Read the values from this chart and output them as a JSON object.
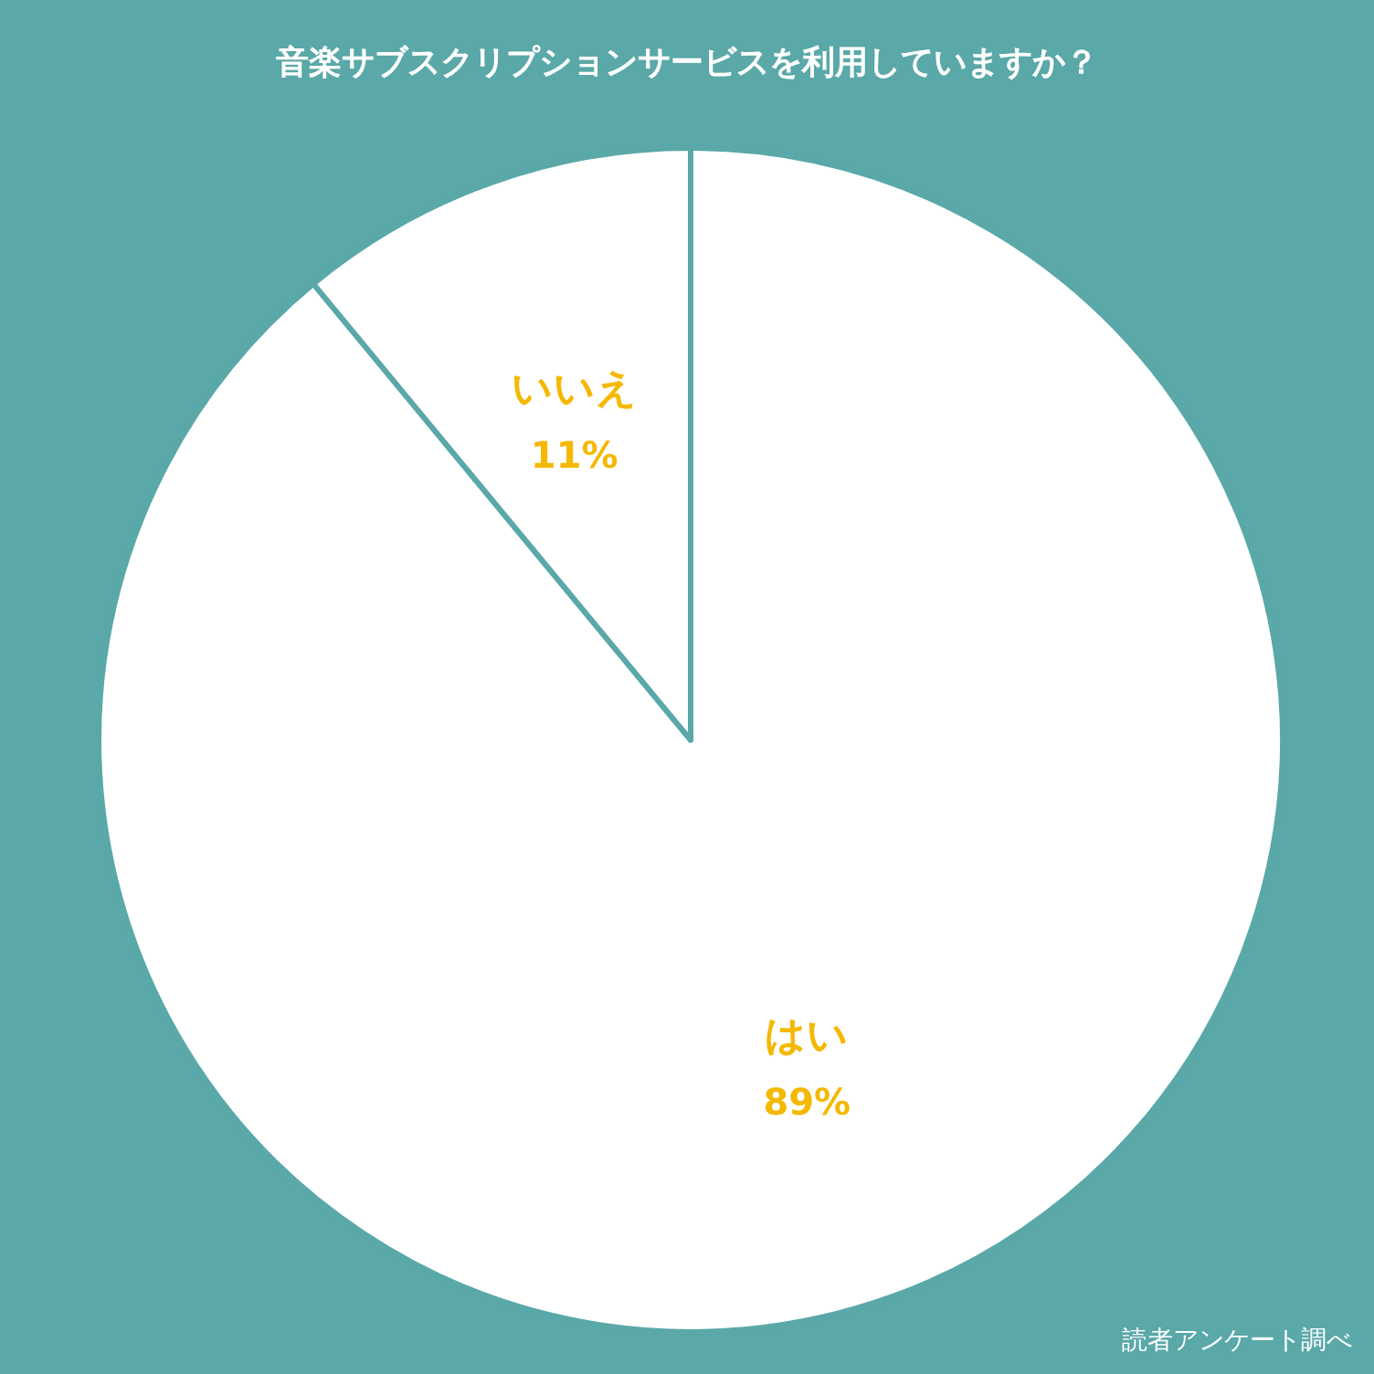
{
  "chart_data": {
    "type": "pie",
    "title": "音楽サブスクリプションサービスを利用していますか？",
    "categories": [
      "はい",
      "いいえ"
    ],
    "values": [
      89,
      11
    ],
    "value_labels": [
      "89%",
      "11%"
    ],
    "colors": [
      "#ffffff",
      "#ffffff"
    ],
    "annotations": [
      "読者アンケート調べ"
    ]
  }
}
